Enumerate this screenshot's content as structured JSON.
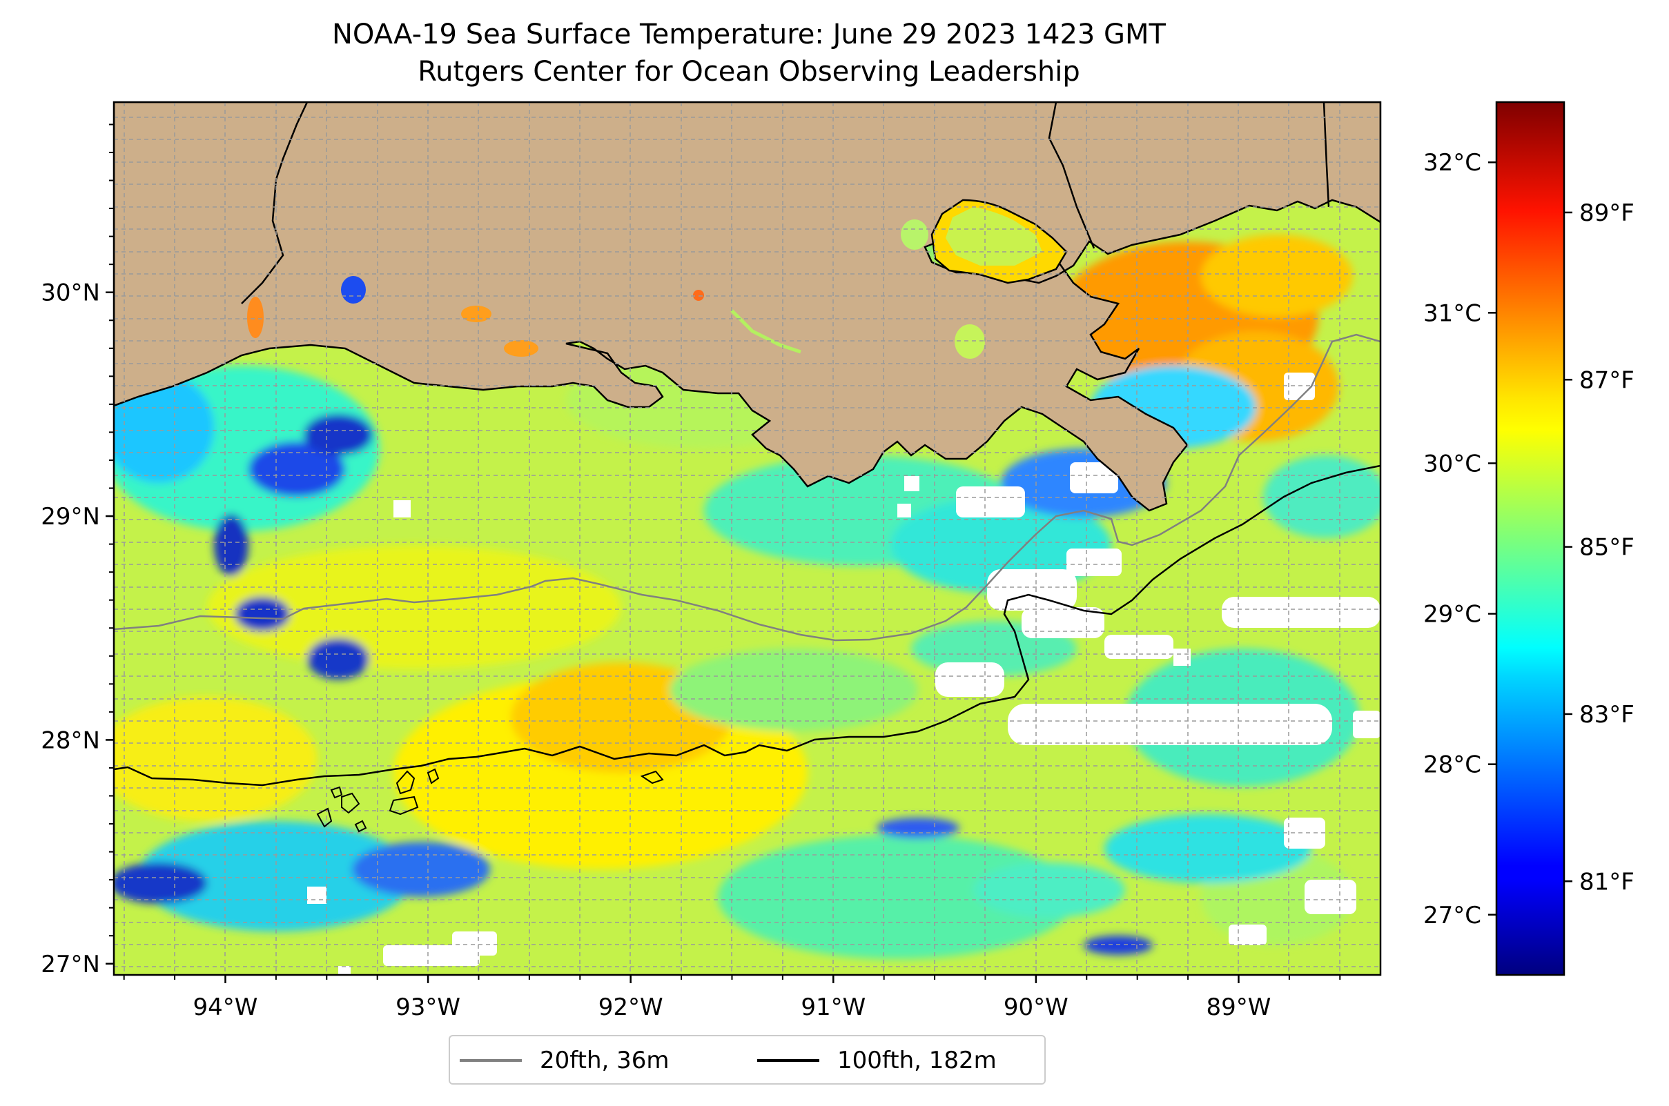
{
  "title": "NOAA-19 Sea Surface Temperature: June 29 2023 1423 GMT",
  "subtitle": "Rutgers Center for Ocean Observing Leadership",
  "colors": {
    "land": "#cdaf8a",
    "missing": "#ffffff",
    "isobath_20fth": "#808080",
    "isobath_100fth": "#000000",
    "grid": "#9a9a9a"
  },
  "map": {
    "extent": {
      "lon_min": -94.55,
      "lon_max": -88.3,
      "lat_min": 26.95,
      "lat_max": 30.85
    },
    "lat_ticks": [
      {
        "value": 30,
        "label": "30°N"
      },
      {
        "value": 29,
        "label": "29°N"
      },
      {
        "value": 28,
        "label": "28°N"
      },
      {
        "value": 27,
        "label": "27°N"
      }
    ],
    "lon_ticks": [
      {
        "value": -94,
        "label": "94°W"
      },
      {
        "value": -93,
        "label": "93°W"
      },
      {
        "value": -92,
        "label": "92°W"
      },
      {
        "value": -91,
        "label": "91°W"
      },
      {
        "value": -90,
        "label": "90°W"
      },
      {
        "value": -89,
        "label": "89°W"
      }
    ],
    "gridlines": true
  },
  "colorbar": {
    "colormap": "jet",
    "celsius_range": [
      26.6,
      32.4
    ],
    "celsius_ticks": [
      {
        "value": 27,
        "label": "27°C"
      },
      {
        "value": 28,
        "label": "28°C"
      },
      {
        "value": 29,
        "label": "29°C"
      },
      {
        "value": 30,
        "label": "30°C"
      },
      {
        "value": 31,
        "label": "31°C"
      },
      {
        "value": 32,
        "label": "32°C"
      }
    ],
    "fahrenheit_ticks": [
      {
        "value": 81,
        "label": "81°F"
      },
      {
        "value": 83,
        "label": "83°F"
      },
      {
        "value": 85,
        "label": "85°F"
      },
      {
        "value": 87,
        "label": "87°F"
      },
      {
        "value": 89,
        "label": "89°F"
      }
    ]
  },
  "legend": {
    "items": [
      {
        "label": "20fth, 36m",
        "color": "#808080"
      },
      {
        "label": "100fth, 182m",
        "color": "#000000"
      }
    ]
  }
}
